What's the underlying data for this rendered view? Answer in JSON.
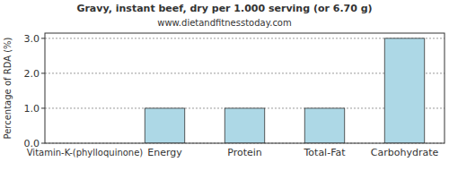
{
  "chart_data": {
    "type": "bar",
    "title": "Gravy, instant beef, dry per 1.000 serving (or 6.70 g)",
    "subtitle": "www.dietandfitnesstoday.com",
    "y_label": "Percentage of RDA (%)",
    "categories": [
      "Vitamin-K-(phylloquinone)",
      "Energy",
      "Protein",
      "Total-Fat",
      "Carbohydrate"
    ],
    "values": [
      0,
      1,
      1,
      1,
      3
    ],
    "color": "#add8e6",
    "ylim": [
      0,
      3.15
    ],
    "yticks": [
      {
        "value": 0,
        "label": "0.0"
      },
      {
        "value": 1,
        "label": "1.0"
      },
      {
        "value": 2,
        "label": "2.0"
      },
      {
        "value": 3,
        "label": "3.0"
      }
    ],
    "grid": true
  }
}
